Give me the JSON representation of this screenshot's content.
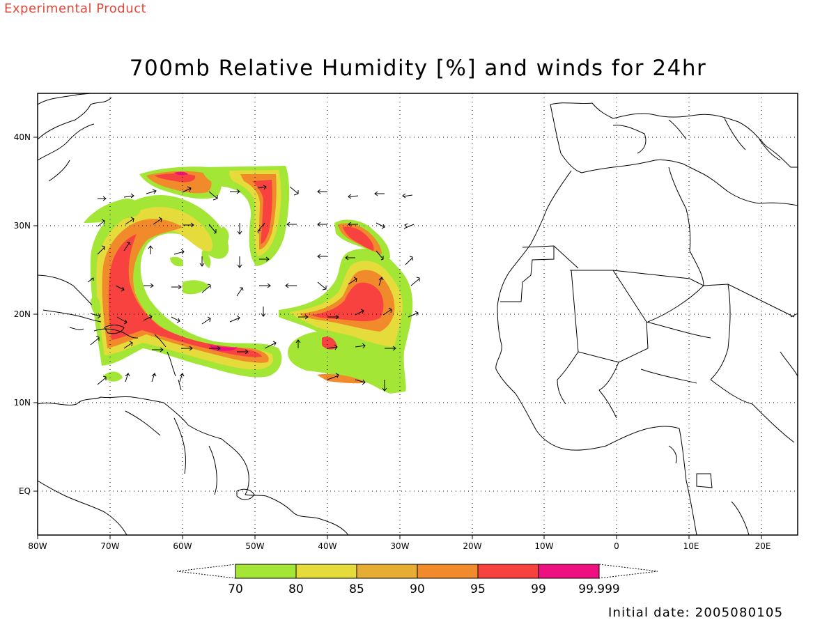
{
  "header": {
    "experimental_label": "Experimental Product"
  },
  "title": "700mb Relative Humidity [%] and winds for 24hr",
  "axes": {
    "lon_ticks": [
      "80W",
      "70W",
      "60W",
      "50W",
      "40W",
      "30W",
      "20W",
      "10W",
      "0",
      "10E",
      "20E"
    ],
    "lat_ticks": [
      "40N",
      "30N",
      "20N",
      "10N",
      "EQ"
    ]
  },
  "colorbar": {
    "bins": [
      {
        "color": "#a3e635"
      },
      {
        "color": "#e5db3a"
      },
      {
        "color": "#e6ad32"
      },
      {
        "color": "#f08a2b"
      },
      {
        "color": "#f8423f"
      },
      {
        "color": "#ee0f80"
      }
    ],
    "labels": [
      "70",
      "80",
      "85",
      "90",
      "95",
      "99",
      "99.999"
    ]
  },
  "footer": {
    "initial_date": "Initial date: 2005080105"
  }
}
